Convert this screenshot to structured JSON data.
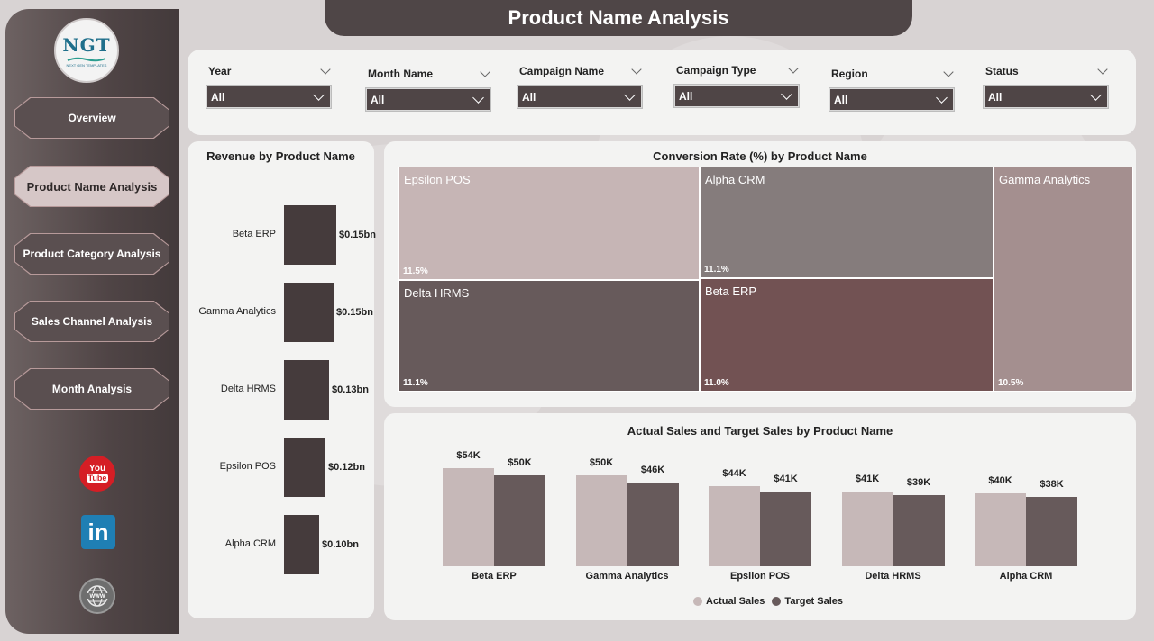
{
  "title": "Product Name Analysis",
  "logo": {
    "text": "NGT",
    "sub": "NEXT GEN TEMPLATES"
  },
  "nav": [
    {
      "label": "Overview",
      "active": false
    },
    {
      "label": "Product Name Analysis",
      "active": true
    },
    {
      "label": "Product Category Analysis",
      "active": false
    },
    {
      "label": "Sales Channel Analysis",
      "active": false
    },
    {
      "label": "Month Analysis",
      "active": false
    }
  ],
  "social": {
    "youtube_top": "You",
    "youtube_bottom": "Tube",
    "linkedin": "in",
    "web_icon": "globe-icon"
  },
  "filters": [
    {
      "label": "Year",
      "value": "All"
    },
    {
      "label": "Month Name",
      "value": "All"
    },
    {
      "label": "Campaign Name",
      "value": "All"
    },
    {
      "label": "Campaign Type",
      "value": "All"
    },
    {
      "label": "Region",
      "value": "All"
    },
    {
      "label": "Status",
      "value": "All"
    }
  ],
  "colors": {
    "actual": "#c6b8b8",
    "target": "#675a5b",
    "dark": "#453b3c"
  },
  "chart_data": [
    {
      "type": "bar",
      "orientation": "horizontal",
      "title": "Revenue by Product Name",
      "categories": [
        "Beta ERP",
        "Gamma Analytics",
        "Delta HRMS",
        "Epsilon POS",
        "Alpha CRM"
      ],
      "values": [
        0.15,
        0.15,
        0.13,
        0.12,
        0.1
      ],
      "labels": [
        "$0.15bn",
        "$0.15bn",
        "$0.13bn",
        "$0.12bn",
        "$0.10bn"
      ],
      "unit": "bn"
    },
    {
      "type": "heatmap",
      "subtype": "treemap",
      "title": "Conversion Rate (%) by Product Name",
      "categories": [
        "Epsilon POS",
        "Alpha CRM",
        "Delta HRMS",
        "Beta ERP",
        "Gamma Analytics"
      ],
      "values": [
        11.5,
        11.1,
        11.1,
        11.0,
        10.5
      ],
      "labels": [
        "11.5%",
        "11.1%",
        "11.1%",
        "11.0%",
        "10.5%"
      ],
      "colors": [
        "#c6b5b5",
        "#857c7c",
        "#675a5b",
        "#725253",
        "#a48f8f"
      ]
    },
    {
      "type": "bar",
      "title": "Actual Sales and Target Sales by Product Name",
      "categories": [
        "Beta ERP",
        "Gamma Analytics",
        "Epsilon POS",
        "Delta HRMS",
        "Alpha CRM"
      ],
      "series": [
        {
          "name": "Actual Sales",
          "values": [
            54,
            50,
            44,
            41,
            40
          ],
          "labels": [
            "$54K",
            "$50K",
            "$44K",
            "$41K",
            "$40K"
          ]
        },
        {
          "name": "Target Sales",
          "values": [
            50,
            46,
            41,
            39,
            38
          ],
          "labels": [
            "$50K",
            "$46K",
            "$41K",
            "$39K",
            "$38K"
          ]
        }
      ],
      "unit": "K",
      "legend": "bottom"
    }
  ]
}
